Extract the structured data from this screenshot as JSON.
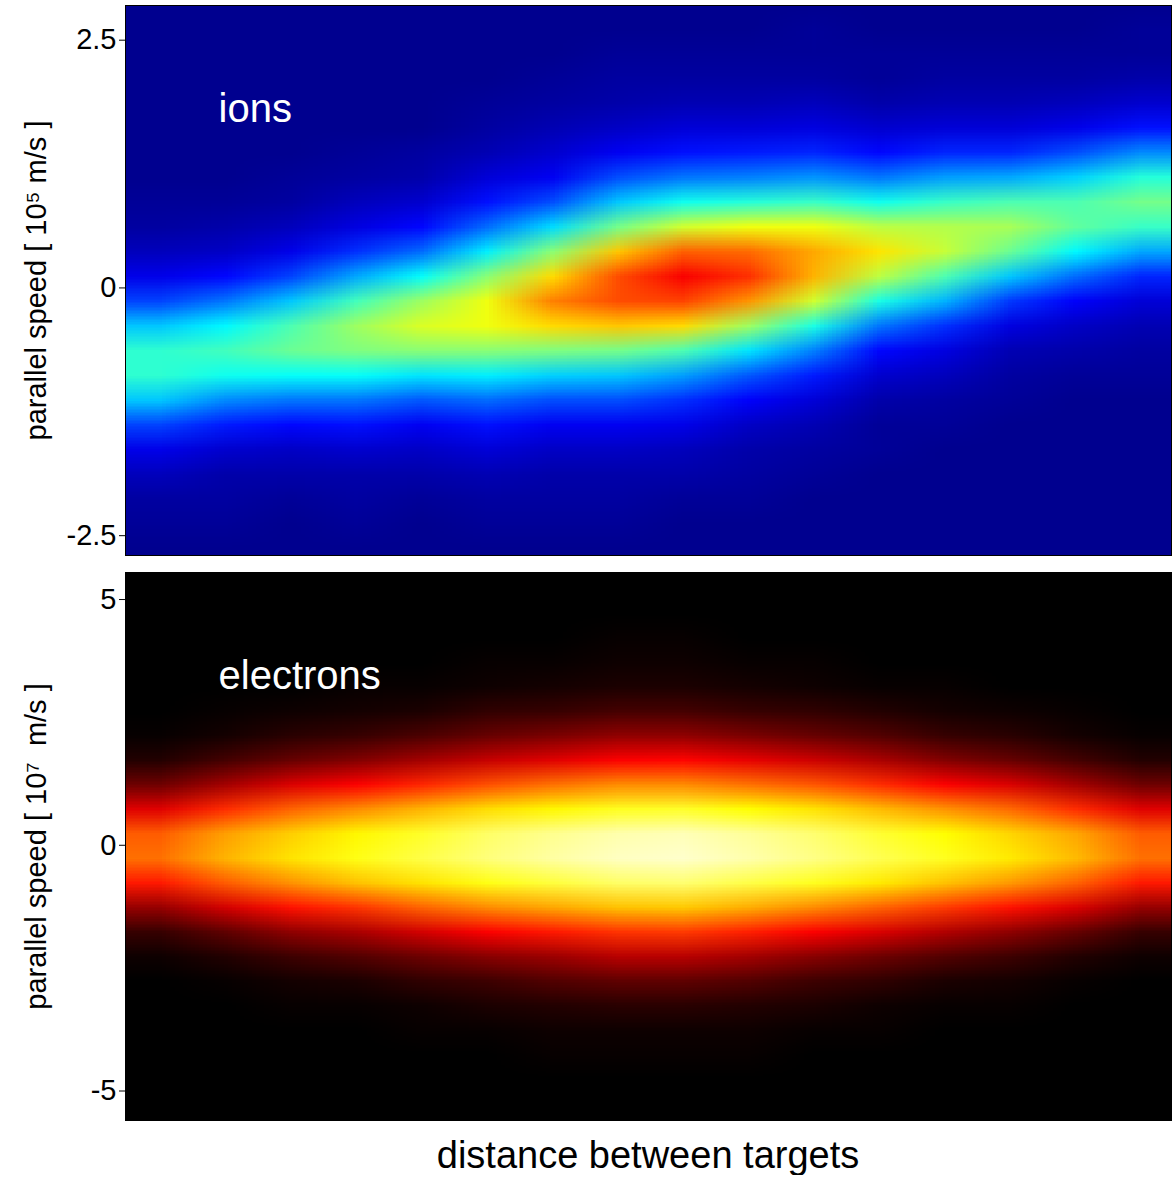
{
  "chart_data": [
    {
      "type": "heatmap",
      "annotations": [
        "ions"
      ],
      "ylabel": "parallel speed [ 10⁵ m/s ]",
      "xlim": [
        0,
        1
      ],
      "ylim": [
        -2.7,
        2.85
      ],
      "yticks": [
        -2.5,
        0,
        2.5
      ],
      "tick_labels": "y",
      "color": "jet",
      "value_range": [
        0,
        1
      ],
      "cells": {
        "x_extent": [
          0,
          1
        ],
        "y_extent": [
          3,
          -3
        ],
        "values": [
          [
            0,
            0,
            0,
            0,
            0,
            0,
            0,
            0,
            0,
            0,
            0,
            0,
            0,
            0,
            0,
            0
          ],
          [
            0,
            0,
            0,
            0,
            0,
            0,
            0,
            0,
            0,
            0,
            0.01,
            0,
            0,
            0,
            0,
            0.01
          ],
          [
            0,
            0,
            0,
            0,
            0,
            0,
            0,
            0.01,
            0.01,
            0.01,
            0.01,
            0.01,
            0.01,
            0.01,
            0.01,
            0.01
          ],
          [
            0,
            0,
            0,
            0,
            0,
            0,
            0.01,
            0.02,
            0.02,
            0.02,
            0.02,
            0.01,
            0.02,
            0.02,
            0.02,
            0.03
          ],
          [
            0,
            0,
            0,
            0,
            0,
            0.01,
            0.02,
            0.03,
            0.04,
            0.04,
            0.05,
            0.03,
            0.04,
            0.04,
            0.05,
            0.07
          ],
          [
            0,
            0,
            0,
            0,
            0,
            0.02,
            0.04,
            0.06,
            0.08,
            0.08,
            0.09,
            0.07,
            0.08,
            0.08,
            0.1,
            0.14
          ],
          [
            0,
            0,
            0,
            0.01,
            0.02,
            0.04,
            0.07,
            0.11,
            0.14,
            0.15,
            0.16,
            0.13,
            0.16,
            0.16,
            0.2,
            0.26
          ],
          [
            0,
            0,
            0.01,
            0.02,
            0.03,
            0.08,
            0.11,
            0.2,
            0.24,
            0.25,
            0.27,
            0.24,
            0.28,
            0.29,
            0.33,
            0.41
          ],
          [
            0.01,
            0.01,
            0.02,
            0.05,
            0.07,
            0.14,
            0.2,
            0.32,
            0.39,
            0.41,
            0.43,
            0.39,
            0.43,
            0.45,
            0.45,
            0.49
          ],
          [
            0.02,
            0.03,
            0.05,
            0.09,
            0.13,
            0.23,
            0.34,
            0.49,
            0.58,
            0.61,
            0.61,
            0.56,
            0.55,
            0.54,
            0.47,
            0.43
          ],
          [
            0.05,
            0.06,
            0.1,
            0.17,
            0.23,
            0.36,
            0.51,
            0.68,
            0.78,
            0.77,
            0.71,
            0.65,
            0.57,
            0.48,
            0.37,
            0.29
          ],
          [
            0.1,
            0.13,
            0.19,
            0.29,
            0.38,
            0.51,
            0.66,
            0.8,
            0.88,
            0.83,
            0.7,
            0.56,
            0.45,
            0.32,
            0.23,
            0.16
          ],
          [
            0.19,
            0.24,
            0.32,
            0.44,
            0.53,
            0.61,
            0.75,
            0.8,
            0.81,
            0.73,
            0.58,
            0.4,
            0.3,
            0.18,
            0.12,
            0.08
          ],
          [
            0.32,
            0.37,
            0.45,
            0.53,
            0.59,
            0.61,
            0.66,
            0.68,
            0.66,
            0.53,
            0.4,
            0.24,
            0.17,
            0.09,
            0.06,
            0.04
          ],
          [
            0.42,
            0.44,
            0.48,
            0.5,
            0.51,
            0.51,
            0.5,
            0.49,
            0.45,
            0.35,
            0.25,
            0.13,
            0.09,
            0.04,
            0.03,
            0.02
          ],
          [
            0.42,
            0.39,
            0.38,
            0.38,
            0.35,
            0.36,
            0.33,
            0.32,
            0.28,
            0.21,
            0.15,
            0.07,
            0.05,
            0.02,
            0.01,
            0.01
          ],
          [
            0.32,
            0.26,
            0.24,
            0.24,
            0.21,
            0.23,
            0.2,
            0.2,
            0.17,
            0.12,
            0.08,
            0.03,
            0.02,
            0.01,
            0,
            0
          ],
          [
            0.19,
            0.15,
            0.13,
            0.14,
            0.11,
            0.14,
            0.11,
            0.11,
            0.1,
            0.06,
            0.04,
            0.01,
            0.01,
            0,
            0,
            0
          ],
          [
            0.1,
            0.07,
            0.06,
            0.07,
            0.06,
            0.08,
            0.06,
            0.06,
            0.05,
            0.03,
            0.02,
            0.01,
            0,
            0,
            0,
            0
          ],
          [
            0.05,
            0.03,
            0.03,
            0.03,
            0.03,
            0.04,
            0.03,
            0.03,
            0.03,
            0.02,
            0.01,
            0,
            0,
            0,
            0,
            0
          ],
          [
            0.02,
            0.02,
            0.01,
            0.02,
            0.01,
            0.02,
            0.02,
            0.02,
            0.01,
            0.01,
            0,
            0,
            0,
            0,
            0,
            0
          ],
          [
            0.01,
            0.01,
            0,
            0.01,
            0,
            0.01,
            0.01,
            0.01,
            0,
            0,
            0,
            0,
            0,
            0,
            0,
            0
          ],
          [
            0,
            0,
            0,
            0,
            0,
            0,
            0,
            0,
            0,
            0,
            0,
            0,
            0,
            0,
            0,
            0
          ],
          [
            0,
            0,
            0,
            0,
            0,
            0,
            0,
            0,
            0,
            0,
            0,
            0,
            0,
            0,
            0,
            0
          ]
        ]
      }
    },
    {
      "type": "heatmap",
      "annotations": [
        "electrons"
      ],
      "ylabel": "parallel speed [ 10⁷  m/s ]",
      "xlabel": "distance between targets",
      "xlim": [
        0,
        1
      ],
      "ylim": [
        -5.6,
        5.55
      ],
      "yticks": [
        -5,
        0,
        5
      ],
      "tick_labels": "y",
      "color": "hot",
      "value_range": [
        0,
        1
      ],
      "cells": {
        "x_extent": [
          0,
          1
        ],
        "y_extent": [
          6,
          -6
        ],
        "values": [
          [
            0,
            0,
            0,
            0,
            0,
            0,
            0,
            0,
            0,
            0,
            0,
            0,
            0,
            0,
            0,
            0
          ],
          [
            0,
            0,
            0,
            0,
            0,
            0,
            0,
            0,
            0,
            0,
            0,
            0,
            0,
            0,
            0,
            0
          ],
          [
            0,
            0,
            0,
            0,
            0,
            0,
            0,
            0,
            0,
            0,
            0,
            0,
            0,
            0,
            0,
            0
          ],
          [
            0,
            0,
            0,
            0,
            0,
            0,
            0,
            0.01,
            0.01,
            0,
            0,
            0,
            0,
            0,
            0,
            0
          ],
          [
            0,
            0,
            0,
            0,
            0,
            0.01,
            0.01,
            0.02,
            0.02,
            0.01,
            0.01,
            0,
            0,
            0,
            0,
            0
          ],
          [
            0,
            0,
            0,
            0.01,
            0.01,
            0.02,
            0.03,
            0.04,
            0.04,
            0.03,
            0.02,
            0.01,
            0.01,
            0,
            0,
            0
          ],
          [
            0,
            0.01,
            0.02,
            0.03,
            0.04,
            0.07,
            0.08,
            0.1,
            0.1,
            0.08,
            0.07,
            0.05,
            0.03,
            0.02,
            0.01,
            0
          ],
          [
            0.01,
            0.03,
            0.06,
            0.08,
            0.11,
            0.15,
            0.18,
            0.21,
            0.21,
            0.18,
            0.15,
            0.12,
            0.08,
            0.06,
            0.03,
            0.01
          ],
          [
            0.05,
            0.1,
            0.15,
            0.19,
            0.24,
            0.29,
            0.33,
            0.37,
            0.38,
            0.34,
            0.3,
            0.25,
            0.19,
            0.15,
            0.1,
            0.05
          ],
          [
            0.16,
            0.24,
            0.32,
            0.37,
            0.43,
            0.49,
            0.54,
            0.58,
            0.58,
            0.54,
            0.5,
            0.44,
            0.37,
            0.32,
            0.24,
            0.16
          ],
          [
            0.33,
            0.44,
            0.52,
            0.58,
            0.64,
            0.7,
            0.74,
            0.78,
            0.79,
            0.75,
            0.71,
            0.65,
            0.59,
            0.53,
            0.44,
            0.33
          ],
          [
            0.51,
            0.61,
            0.68,
            0.74,
            0.79,
            0.85,
            0.89,
            0.92,
            0.93,
            0.9,
            0.86,
            0.8,
            0.75,
            0.69,
            0.62,
            0.51
          ],
          [
            0.54,
            0.64,
            0.71,
            0.77,
            0.82,
            0.87,
            0.91,
            0.94,
            0.95,
            0.92,
            0.88,
            0.83,
            0.78,
            0.72,
            0.65,
            0.54
          ],
          [
            0.41,
            0.51,
            0.59,
            0.66,
            0.71,
            0.77,
            0.81,
            0.85,
            0.86,
            0.82,
            0.78,
            0.72,
            0.66,
            0.6,
            0.52,
            0.41
          ],
          [
            0.22,
            0.31,
            0.4,
            0.45,
            0.52,
            0.58,
            0.62,
            0.66,
            0.67,
            0.63,
            0.58,
            0.52,
            0.46,
            0.4,
            0.32,
            0.22
          ],
          [
            0.08,
            0.14,
            0.21,
            0.25,
            0.31,
            0.37,
            0.41,
            0.45,
            0.46,
            0.42,
            0.37,
            0.32,
            0.26,
            0.21,
            0.15,
            0.08
          ],
          [
            0.02,
            0.05,
            0.09,
            0.12,
            0.16,
            0.2,
            0.23,
            0.27,
            0.27,
            0.24,
            0.2,
            0.16,
            0.12,
            0.09,
            0.05,
            0.02
          ],
          [
            0,
            0.01,
            0.03,
            0.04,
            0.07,
            0.09,
            0.12,
            0.14,
            0.14,
            0.12,
            0.09,
            0.07,
            0.04,
            0.03,
            0.01,
            0
          ],
          [
            0,
            0,
            0.01,
            0.01,
            0.02,
            0.04,
            0.05,
            0.06,
            0.06,
            0.05,
            0.04,
            0.02,
            0.01,
            0.01,
            0,
            0
          ],
          [
            0,
            0,
            0,
            0,
            0.01,
            0.01,
            0.02,
            0.02,
            0.02,
            0.02,
            0.01,
            0.01,
            0,
            0,
            0,
            0
          ],
          [
            0,
            0,
            0,
            0,
            0,
            0,
            0.01,
            0.01,
            0.01,
            0.01,
            0,
            0,
            0,
            0,
            0,
            0
          ],
          [
            0,
            0,
            0,
            0,
            0,
            0,
            0,
            0,
            0,
            0,
            0,
            0,
            0,
            0,
            0,
            0
          ],
          [
            0,
            0,
            0,
            0,
            0,
            0,
            0,
            0,
            0,
            0,
            0,
            0,
            0,
            0,
            0,
            0
          ],
          [
            0,
            0,
            0,
            0,
            0,
            0,
            0,
            0,
            0,
            0,
            0,
            0,
            0,
            0,
            0,
            0
          ]
        ]
      }
    }
  ]
}
